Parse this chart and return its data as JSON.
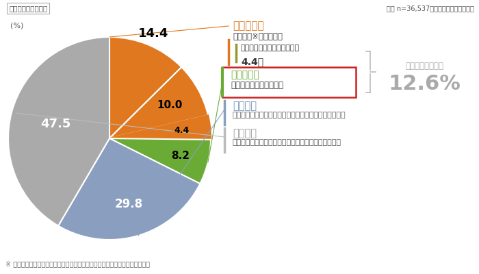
{
  "slices": [
    14.4,
    10.0,
    4.4,
    8.2,
    29.8,
    47.5
  ],
  "slice_labels": [
    "14.4",
    "10.0",
    "4.4",
    "8.2",
    "29.8",
    "47.5"
  ],
  "slice_colors": [
    "#E07820",
    "#E07820",
    "#E07820",
    "#6AAB35",
    "#8A9EC0",
    "#AAAAAA"
  ],
  "hatches": [
    "",
    "",
    "////",
    "",
    "",
    ""
  ],
  "slice_label_colors": [
    "black",
    "black",
    "black",
    "black",
    "white",
    "white"
  ],
  "label_manabi_title": "学び直し層",
  "label_manabi_sub1": "学び直し※をしている",
  "label_manabi_sub2": "うち、趣味の学習もしている",
  "label_manabi_pct": "4.4％",
  "label_shumi_title": "趣味学習層",
  "label_shumi_sub": "趣味の学習だけしている",
  "label_kuchi_title": "口だけ層",
  "label_kuchi_sub": "自ら学び直す意欲があるが、特に学んでいることはない",
  "label_fuk_title": "不活性層",
  "label_fuk_sub": "自ら学び直す意欲がなく、特に学んでいることはない",
  "label_jisshu": "趣味の学習実施率",
  "label_jisshu_pct": "12.6%",
  "top_label": "ウェイトバック処理",
  "top_right": "全体 n=36,537（スクリーニング調査）",
  "pct_label": "(%)",
  "footnote": "※ 学び直し：業務外の時間に、仕事やキャリアに関して継続して学習すること",
  "orange_color": "#E07820",
  "green_color": "#6AAB35",
  "blue_color": "#8A9EC0",
  "gray_color": "#AAAAAA",
  "red_box_color": "#CC2222",
  "text_dark": "#333333",
  "blue_label_color": "#7090BB"
}
